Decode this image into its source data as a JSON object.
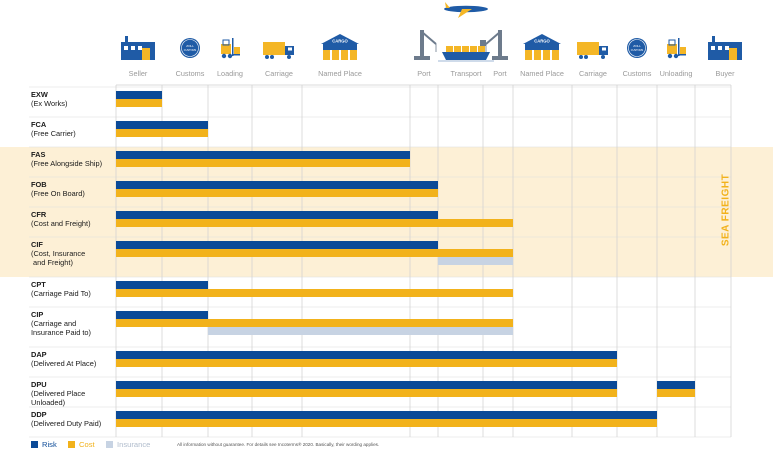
{
  "chart_data": {
    "type": "bar",
    "title": "",
    "stages": [
      "Seller",
      "Customs",
      "Loading",
      "Carriage",
      "Named Place",
      "Port",
      "Transport",
      "Port",
      "Named Place",
      "Carriage",
      "Customs",
      "Unloading",
      "Buyer"
    ],
    "rows": [
      {
        "code": "EXW",
        "full": "(Ex Works)",
        "risk": [
          [
            0,
            1
          ]
        ],
        "cost": [
          [
            0,
            1
          ]
        ],
        "insurance": []
      },
      {
        "code": "FCA",
        "full": "(Free Carrier)",
        "risk": [
          [
            0,
            2
          ]
        ],
        "cost": [
          [
            0,
            2
          ]
        ],
        "insurance": []
      },
      {
        "code": "FAS",
        "full": "(Free Alongside Ship)",
        "risk": [
          [
            0,
            4.5
          ]
        ],
        "cost": [
          [
            0,
            4.5
          ]
        ],
        "insurance": []
      },
      {
        "code": "FOB",
        "full": "(Free On Board)",
        "risk": [
          [
            0,
            5
          ]
        ],
        "cost": [
          [
            0,
            5
          ]
        ],
        "insurance": []
      },
      {
        "code": "CFR",
        "full": "(Cost and Freight)",
        "risk": [
          [
            0,
            5
          ]
        ],
        "cost": [
          [
            0,
            6
          ]
        ],
        "insurance": []
      },
      {
        "code": "CIF",
        "full": "(Cost, Insurance\n and Freight)",
        "risk": [
          [
            0,
            5
          ]
        ],
        "cost": [
          [
            0,
            6
          ]
        ],
        "insurance": [
          [
            5,
            6
          ]
        ]
      },
      {
        "code": "CPT",
        "full": "(Carriage Paid To)",
        "risk": [
          [
            0,
            2
          ]
        ],
        "cost": [
          [
            0,
            6
          ]
        ],
        "insurance": []
      },
      {
        "code": "CIP",
        "full": "(Carriage and\nInsurance Paid to)",
        "risk": [
          [
            0,
            2
          ]
        ],
        "cost": [
          [
            0,
            6
          ]
        ],
        "insurance": [
          [
            2,
            6
          ]
        ]
      },
      {
        "code": "DAP",
        "full": "(Delivered At Place)",
        "risk": [
          [
            0,
            8
          ]
        ],
        "cost": [
          [
            0,
            8
          ]
        ],
        "insurance": []
      },
      {
        "code": "DPU",
        "full": "(Delivered Place\nUnloaded)",
        "risk": [
          [
            0,
            8
          ],
          [
            9,
            10
          ]
        ],
        "cost": [
          [
            0,
            8
          ],
          [
            9,
            10
          ]
        ],
        "insurance": []
      },
      {
        "code": "DDP",
        "full": "(Delivered Duty Paid)",
        "risk": [
          [
            0,
            9
          ]
        ],
        "cost": [
          [
            0,
            9
          ]
        ],
        "insurance": []
      }
    ],
    "sea_freight_label": "SEA FREIGHT",
    "legend": [
      {
        "name": "Risk",
        "color": "#0b4a97"
      },
      {
        "name": "Cost",
        "color": "#f2b21b"
      },
      {
        "name": "Insurance",
        "color": "#c7d3e3"
      }
    ]
  },
  "icons": {
    "cargo_label": "CARGO",
    "customs_text_1": "ZOLL",
    "customs_text_2": "CUSTOMS"
  },
  "footnote": "All information without guarantee. For details see Incoterms® 2020. Basically, their wording applies.",
  "colors": {
    "risk": "#0b4a97",
    "cost": "#f2b21b",
    "insurance": "#c7d3e3",
    "sea": "#fdf0d6",
    "grid": "#cfcfcf",
    "icon_blue": "#1f5ba6",
    "icon_yellow": "#f4b626"
  }
}
